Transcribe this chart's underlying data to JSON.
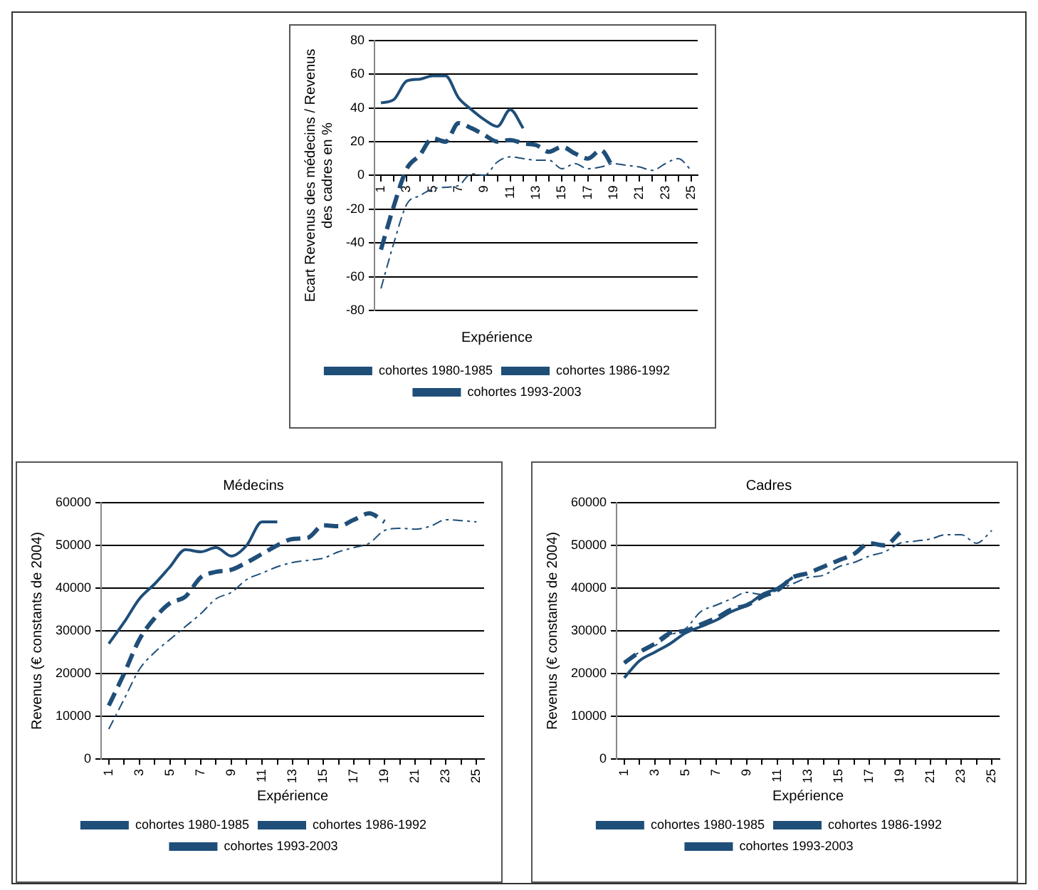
{
  "chart_data": [
    {
      "type": "line",
      "xlabel": "Expérience",
      "ylabel": "Ecart Revenus des médecins / Revenus des cadres en %",
      "categories": [
        "1",
        null,
        "3",
        null,
        "5",
        null,
        "7",
        null,
        "9",
        null,
        "11",
        null,
        "13",
        null,
        "15",
        null,
        "17",
        null,
        "19",
        null,
        "21",
        null,
        "23",
        null,
        "25"
      ],
      "ylim": [
        -80,
        80
      ],
      "yticks": [
        -80,
        -60,
        -40,
        -20,
        0,
        20,
        40,
        60,
        80
      ],
      "grid": "y",
      "legend": "bottom",
      "marker": "none",
      "series": [
        {
          "name": "cohortes 1980-1985",
          "color": "#1f4e79",
          "line_style": "dashed",
          "values": [
            -67,
            -40,
            -17,
            -12,
            -8,
            -7,
            -6,
            1,
            0,
            8,
            11,
            10,
            9,
            9,
            4,
            7,
            4,
            5,
            7,
            6,
            5,
            3,
            7,
            10,
            3
          ]
        },
        {
          "name": "cohortes 1986-1992",
          "color": "#1f4e79",
          "line_style": "dashed",
          "values": [
            -44,
            -18,
            4,
            12,
            22,
            20,
            31,
            28,
            24,
            20,
            21,
            19,
            18,
            14,
            17,
            13,
            10,
            15,
            4,
            null,
            null,
            null,
            null,
            null,
            null
          ]
        },
        {
          "name": "cohortes 1993-2003",
          "color": "#1f4e79",
          "line_style": "solid",
          "values": [
            43,
            45,
            56,
            57,
            59,
            59,
            46,
            39,
            33,
            29,
            39,
            28,
            null,
            null,
            null,
            null,
            null,
            null,
            null,
            null,
            null,
            null,
            null,
            null,
            null
          ]
        }
      ]
    },
    {
      "type": "line",
      "title": "Médecins",
      "xlabel": "Expérience",
      "ylabel": "Revenus (€ constants de 2004)",
      "categories": [
        "1",
        null,
        "3",
        null,
        "5",
        null,
        "7",
        null,
        "9",
        null,
        "11",
        null,
        "13",
        null,
        "15",
        null,
        "17",
        null,
        "19",
        null,
        "21",
        null,
        "23",
        null,
        "25"
      ],
      "ylim": [
        0,
        60000
      ],
      "yticks": [
        0,
        10000,
        20000,
        30000,
        40000,
        50000,
        60000
      ],
      "grid": "y",
      "legend": "bottom",
      "marker": "none",
      "series": [
        {
          "name": "cohortes 1980-1985",
          "color": "#1f4e79",
          "line_style": "dashed",
          "values": [
            7000,
            14000,
            21000,
            25000,
            28000,
            31000,
            34000,
            37500,
            39000,
            42000,
            43500,
            45000,
            46000,
            46500,
            47000,
            48500,
            49500,
            50500,
            53500,
            54000,
            53800,
            54500,
            56000,
            55800,
            55500
          ]
        },
        {
          "name": "cohortes 1986-1992",
          "color": "#1f4e79",
          "line_style": "dashed",
          "values": [
            12500,
            20000,
            28000,
            33000,
            36500,
            38000,
            42500,
            43800,
            44300,
            46000,
            48000,
            50000,
            51500,
            51800,
            54700,
            54500,
            56000,
            57500,
            55500,
            null,
            null,
            null,
            null,
            null,
            null
          ]
        },
        {
          "name": "cohortes 1993-2003",
          "color": "#1f4e79",
          "line_style": "solid",
          "values": [
            27000,
            32000,
            37500,
            41000,
            45000,
            49000,
            48500,
            49500,
            47500,
            50000,
            55500,
            55500,
            null,
            null,
            null,
            null,
            null,
            null,
            null,
            null,
            null,
            null,
            null,
            null,
            null
          ]
        }
      ]
    },
    {
      "type": "line",
      "title": "Cadres",
      "xlabel": "Expérience",
      "ylabel": "Revenus (€ constants de 2004)",
      "categories": [
        "1",
        null,
        "3",
        null,
        "5",
        null,
        "7",
        null,
        "9",
        null,
        "11",
        null,
        "13",
        null,
        "15",
        null,
        "17",
        null,
        "19",
        null,
        "21",
        null,
        "23",
        null,
        "25"
      ],
      "ylim": [
        0,
        60000
      ],
      "yticks": [
        0,
        10000,
        20000,
        30000,
        40000,
        50000,
        60000
      ],
      "grid": "y",
      "legend": "bottom",
      "marker": "none",
      "series": [
        {
          "name": "cohortes 1980-1985",
          "color": "#1f4e79",
          "line_style": "dashed",
          "values": [
            22500,
            25000,
            26500,
            29000,
            30500,
            34500,
            36000,
            37500,
            39000,
            38500,
            39500,
            41000,
            42500,
            43000,
            45000,
            46000,
            47500,
            48500,
            50500,
            51000,
            51500,
            52500,
            52500,
            50500,
            53500
          ]
        },
        {
          "name": "cohortes 1986-1992",
          "color": "#1f4e79",
          "line_style": "dashed",
          "values": [
            22500,
            25000,
            27000,
            29500,
            30000,
            31500,
            33000,
            35000,
            36000,
            38000,
            39500,
            42500,
            43500,
            45000,
            46500,
            48000,
            50500,
            50000,
            53000,
            null,
            null,
            null,
            null,
            null,
            null
          ]
        },
        {
          "name": "cohortes 1993-2003",
          "color": "#1f4e79",
          "line_style": "solid",
          "values": [
            19000,
            23000,
            25000,
            27000,
            29500,
            31000,
            32500,
            34500,
            36000,
            38500,
            40000,
            42500,
            null,
            null,
            null,
            null,
            null,
            null,
            null,
            null,
            null,
            null,
            null,
            null,
            null
          ]
        }
      ]
    }
  ]
}
